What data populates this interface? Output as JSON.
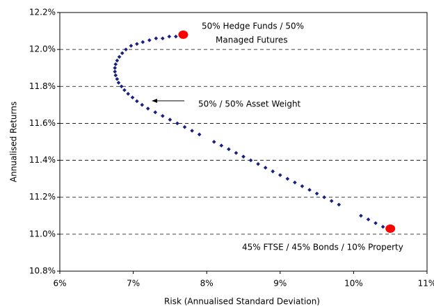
{
  "chart_data": {
    "type": "scatter",
    "x_label": "Risk (Annualised Standard Deviation)",
    "y_label": "Annualised Returns",
    "xlim": [
      6,
      11
    ],
    "ylim": [
      10.8,
      12.2
    ],
    "xticks": [
      {
        "value": 6,
        "label": "6%"
      },
      {
        "value": 7,
        "label": "7%"
      },
      {
        "value": 8,
        "label": "8%"
      },
      {
        "value": 9,
        "label": "9%"
      },
      {
        "value": 10,
        "label": "10%"
      },
      {
        "value": 11,
        "label": "11%"
      }
    ],
    "yticks": [
      {
        "value": 10.8,
        "label": "10.8%"
      },
      {
        "value": 11.0,
        "label": "11.0%"
      },
      {
        "value": 11.2,
        "label": "11.2%"
      },
      {
        "value": 11.4,
        "label": "11.4%"
      },
      {
        "value": 11.6,
        "label": "11.6%"
      },
      {
        "value": 11.8,
        "label": "11.8%"
      },
      {
        "value": 12.0,
        "label": "12.0%"
      },
      {
        "value": 12.2,
        "label": "12.2%"
      }
    ],
    "grid": true,
    "series": [
      {
        "color": "#1a1f80",
        "x": [
          7.58,
          7.49,
          7.4,
          7.31,
          7.22,
          7.13,
          7.05,
          6.97,
          6.9,
          6.85,
          6.81,
          6.78,
          6.76,
          6.75,
          6.75,
          6.76,
          6.78,
          6.8,
          6.84,
          6.88,
          6.93,
          6.99,
          7.05,
          7.12,
          7.2,
          7.3,
          7.4,
          7.5,
          7.6,
          7.7,
          7.8,
          7.9,
          8.1,
          8.2,
          8.3,
          8.4,
          8.5,
          8.6,
          8.7,
          8.8,
          8.9,
          9.0,
          9.1,
          9.2,
          9.3,
          9.4,
          9.5,
          9.6,
          9.7,
          9.8,
          10.1,
          10.2,
          10.3,
          10.4
        ],
        "values": [
          12.07,
          12.07,
          12.06,
          12.06,
          12.05,
          12.04,
          12.03,
          12.02,
          12.0,
          11.98,
          11.96,
          11.94,
          11.92,
          11.9,
          11.88,
          11.86,
          11.84,
          11.82,
          11.8,
          11.78,
          11.76,
          11.74,
          11.72,
          11.7,
          11.68,
          11.66,
          11.64,
          11.62,
          11.6,
          11.58,
          11.56,
          11.54,
          11.5,
          11.48,
          11.46,
          11.44,
          11.42,
          11.4,
          11.38,
          11.36,
          11.34,
          11.32,
          11.3,
          11.28,
          11.26,
          11.24,
          11.22,
          11.2,
          11.18,
          11.16,
          11.1,
          11.08,
          11.06,
          11.04
        ]
      },
      {
        "color": "#ff0000",
        "x": [
          7.68,
          10.5
        ],
        "values": [
          12.08,
          11.03
        ]
      }
    ],
    "annotations": [
      "50% Hedge Funds / 50%",
      "Managed Futures",
      "50% /  50% Asset Weight",
      "45% FTSE / 45% Bonds / 10% Property"
    ]
  }
}
